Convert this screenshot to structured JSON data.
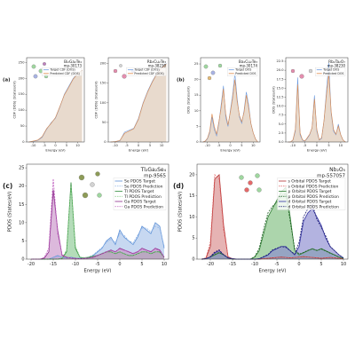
{
  "chart_data": [
    {
      "type": "area",
      "panel_label": "(a)",
      "title": "Bi₂Ga₂Te₄",
      "subtitle": "mp-30173",
      "xlabel": "Energy (eV)",
      "ylabel": "CDF (DOS) (States/eV)",
      "xlim": [
        -13,
        13
      ],
      "xticks": [
        -10,
        -5,
        0,
        5,
        10
      ],
      "ylim": [
        0,
        265
      ],
      "yticks": [
        0,
        50,
        100,
        150,
        200,
        250
      ],
      "legend": "upper right",
      "x": [
        -12,
        -10,
        -8,
        -6,
        -4,
        -2,
        0,
        2,
        4,
        6,
        8,
        10,
        12
      ],
      "series": [
        {
          "name": "Target CDF (DOS)",
          "color": "#6a9ae0",
          "values": [
            0,
            2,
            5,
            15,
            40,
            60,
            75,
            110,
            150,
            175,
            200,
            215,
            225
          ]
        },
        {
          "name": "Predicted CDF (DOS)",
          "color": "#e08a4a",
          "fill": "#dcc6b2",
          "values": [
            0,
            3,
            6,
            17,
            42,
            58,
            77,
            112,
            148,
            172,
            198,
            214,
            226
          ]
        }
      ]
    },
    {
      "type": "area",
      "title": "Rb₂Cu₂Te₃",
      "subtitle": "mp-38230",
      "xlabel": "Energy (eV)",
      "ylabel": "CDF (DOS) (States/eV)",
      "xlim": [
        -13,
        13
      ],
      "xticks": [
        -10,
        -5,
        0,
        5,
        10
      ],
      "ylim": [
        0,
        215
      ],
      "yticks": [
        0,
        50,
        100,
        150,
        200
      ],
      "legend": "upper right",
      "x": [
        -12,
        -10,
        -8,
        -6,
        -4,
        -2,
        0,
        2,
        4,
        6,
        8,
        10,
        12
      ],
      "series": [
        {
          "name": "Target CDF (DOS)",
          "color": "#6a9ae0",
          "values": [
            0,
            1,
            3,
            25,
            30,
            35,
            60,
            100,
            130,
            155,
            175,
            190,
            200
          ]
        },
        {
          "name": "Predicted CDF (DOS)",
          "color": "#e08a4a",
          "fill": "#dcc6b2",
          "values": [
            0,
            1,
            4,
            22,
            28,
            34,
            58,
            98,
            128,
            153,
            174,
            189,
            199
          ]
        }
      ]
    },
    {
      "type": "area",
      "panel_label": "(b)",
      "title": "Ba₂Cu₂Te₃",
      "subtitle": "mp-30174",
      "xlabel": "Energy (eV)",
      "ylabel": "DOS (States/eV)",
      "xlim": [
        -13,
        13
      ],
      "xticks": [
        -10,
        -5,
        0,
        5,
        10
      ],
      "ylim": [
        0,
        27
      ],
      "yticks": [
        0,
        5,
        10,
        15,
        20,
        25
      ],
      "legend": "upper right",
      "x": [
        -12,
        -11,
        -10,
        -9,
        -8,
        -7,
        -6,
        -5,
        -4,
        -3,
        -2,
        -1,
        0,
        1,
        2,
        3,
        4,
        5,
        6,
        7,
        8,
        9,
        10,
        11,
        12
      ],
      "series": [
        {
          "name": "Target DOS",
          "color": "#6a9ae0",
          "values": [
            0,
            0.2,
            1,
            3,
            8,
            4,
            2,
            6,
            12,
            18,
            8,
            5,
            10,
            15,
            22,
            14,
            8,
            6,
            10,
            16,
            12,
            6,
            3,
            1,
            0
          ]
        },
        {
          "name": "Predicted DOS",
          "color": "#e08a4a",
          "fill": "#dcc6b2",
          "values": [
            0,
            0.3,
            1.2,
            3.5,
            9,
            5,
            2.5,
            6.5,
            11,
            17,
            9,
            5.5,
            9.5,
            14,
            20,
            13,
            8.5,
            6.5,
            9.5,
            15,
            11,
            6,
            3,
            1,
            0
          ]
        }
      ]
    },
    {
      "type": "area",
      "title": "Rb₂Ta₂O₇",
      "subtitle": "mp-38230",
      "xlabel": "Energy (eV)",
      "ylabel": "DOS (States/eV)",
      "xlim": [
        -13,
        13
      ],
      "xticks": [
        -10,
        -5,
        0,
        5,
        10
      ],
      "ylim": [
        0,
        23.5
      ],
      "yticks": [
        {
          "value": 0,
          "label": "0.0"
        },
        2.5,
        {
          "value": 5,
          "label": "5.0"
        },
        7.5,
        {
          "value": 10,
          "label": "10.0"
        },
        12.5,
        {
          "value": 15,
          "label": "15.0"
        },
        17.5,
        {
          "value": 20,
          "label": "20.0"
        },
        22.5
      ],
      "legend": "upper right",
      "x": [
        -12,
        -11,
        -10,
        -9,
        -8,
        -7,
        -6,
        -5,
        -4,
        -3,
        -2,
        -1,
        0,
        1,
        2,
        3,
        4,
        5,
        6,
        7,
        8,
        9,
        10,
        11,
        12
      ],
      "series": [
        {
          "name": "Target DOS",
          "color": "#6a9ae0",
          "values": [
            0,
            0,
            0.5,
            3,
            18,
            2,
            0.5,
            0.2,
            1,
            2,
            4,
            13,
            3,
            0.5,
            1,
            6,
            14,
            22,
            8,
            3,
            2,
            5,
            2,
            0.5,
            0
          ]
        },
        {
          "name": "Predicted DOS",
          "color": "#e08a4a",
          "fill": "#dcc6b2",
          "values": [
            0,
            0,
            0.6,
            3.5,
            16,
            2.5,
            0.6,
            0.3,
            1.2,
            2.2,
            4,
            12,
            3.5,
            0.6,
            1.2,
            6,
            13,
            19,
            8.5,
            3.5,
            2.2,
            4.5,
            2,
            0.5,
            0
          ]
        }
      ]
    },
    {
      "type": "area",
      "panel_label": "(c)",
      "title": "Tl₂Ga₂Se₄",
      "subtitle": "mp-9565",
      "xlabel": "Energy (eV)",
      "ylabel": "PDOS (States/eV)",
      "xlim": [
        -21,
        11
      ],
      "xticks": [
        -20,
        -15,
        -10,
        -5,
        0,
        5,
        10
      ],
      "ylim": [
        0,
        26
      ],
      "yticks": [
        0,
        5,
        10,
        15,
        20,
        25
      ],
      "legend": "upper right",
      "x": [
        -20,
        -19,
        -18,
        -17,
        -16,
        -15,
        -14,
        -13,
        -12,
        -11,
        -10,
        -9,
        -8,
        -7,
        -6,
        -5,
        -4,
        -3,
        -2,
        -1,
        0,
        1,
        2,
        3,
        4,
        5,
        6,
        7,
        8,
        9,
        10
      ],
      "series": [
        {
          "name": "Se PDOS Target",
          "color": "#5b8fd6",
          "fill": "#a9c3ea",
          "values": [
            0,
            0,
            0,
            0,
            0,
            0.5,
            1,
            0.5,
            0.3,
            0.5,
            0.3,
            0.2,
            0.3,
            0.5,
            1,
            2,
            3,
            5,
            6,
            4,
            8,
            6,
            5,
            4,
            6,
            9,
            8,
            7,
            10,
            9,
            3
          ]
        },
        {
          "name": "Se PDOS Prediction",
          "color": "#8fb4e6",
          "dashed": true,
          "values": [
            0,
            0,
            0,
            0,
            0,
            0.4,
            0.8,
            0.5,
            0.3,
            0.4,
            0.3,
            0.2,
            0.3,
            0.6,
            1.2,
            2.2,
            3.2,
            4.6,
            5.5,
            4.5,
            7,
            6.5,
            5,
            4.5,
            6.5,
            8.5,
            8.5,
            7.5,
            9,
            8.5,
            3.5
          ]
        },
        {
          "name": "Tl PDOS Target",
          "color": "#2e8b3a",
          "fill": "#8cc993",
          "values": [
            0,
            0,
            0,
            0,
            0,
            0,
            0,
            0.2,
            2,
            21,
            3,
            0.5,
            0.3,
            0.5,
            0.8,
            1,
            1.5,
            2,
            2,
            1.5,
            2,
            1.5,
            1,
            1,
            1.5,
            2,
            2,
            1.5,
            2,
            2,
            0.5
          ]
        },
        {
          "name": "Tl PDOS Prediction",
          "color": "#7fc97f",
          "dashed": true,
          "values": [
            0,
            0,
            0,
            0,
            0,
            0,
            0,
            0.3,
            2.5,
            20,
            3.5,
            0.6,
            0.4,
            0.6,
            0.9,
            1.1,
            1.6,
            2.1,
            1.9,
            1.6,
            2.1,
            1.4,
            1.1,
            1.1,
            1.4,
            2.1,
            1.9,
            1.6,
            2.1,
            1.8,
            0.6
          ]
        },
        {
          "name": "Ga PDOS Target",
          "color": "#8b2a8b",
          "fill": "#c994c9",
          "values": [
            0,
            0,
            0,
            0.3,
            2,
            19,
            8,
            1,
            0.5,
            0.3,
            0.2,
            0.1,
            0.2,
            0.3,
            0.5,
            1,
            1.5,
            2,
            2.5,
            2,
            3,
            2.5,
            2,
            1.5,
            2,
            3,
            2.5,
            2,
            3,
            2.5,
            0.5
          ]
        },
        {
          "name": "Ga PDOS Prediction",
          "color": "#c060c0",
          "dashed": true,
          "values": [
            0,
            0,
            0,
            0.5,
            3,
            22,
            7,
            1.2,
            0.6,
            0.3,
            0.2,
            0.1,
            0.2,
            0.3,
            0.6,
            1.1,
            1.4,
            2.1,
            2.3,
            2.1,
            2.8,
            2.4,
            2.1,
            1.6,
            2.1,
            2.8,
            2.4,
            2.2,
            2.8,
            2.3,
            0.6
          ]
        }
      ]
    },
    {
      "type": "area",
      "panel_label": "(d)",
      "title": "Nb₂O₅",
      "subtitle": "mp-557057",
      "xlabel": "Energy (eV)",
      "ylabel": "PDOS (States/eV)",
      "xlim": [
        -23,
        11
      ],
      "xticks": [
        -20,
        -15,
        -10,
        -5,
        0,
        5,
        10
      ],
      "ylim": [
        0,
        22.5
      ],
      "yticks": [
        0,
        5,
        10,
        15,
        20
      ],
      "legend": "upper right",
      "x": [
        -22,
        -21,
        -20,
        -19,
        -18,
        -17,
        -16,
        -15,
        -14,
        -13,
        -12,
        -11,
        -10,
        -9,
        -8,
        -7,
        -6,
        -5,
        -4,
        -3,
        -2,
        -1,
        0,
        1,
        2,
        3,
        4,
        5,
        6,
        7,
        8,
        9,
        10
      ],
      "series": [
        {
          "name": "s Orbital PDOS Target",
          "color": "#b03030",
          "fill": "#d98a8a",
          "values": [
            0,
            0.2,
            3,
            19,
            20,
            8,
            0.5,
            0.1,
            0,
            0,
            0,
            0,
            0,
            0,
            0.1,
            0.2,
            0.3,
            0.4,
            0.5,
            0.4,
            0.3,
            0.4,
            0.5,
            0.6,
            0.5,
            0.4,
            0.3,
            0.2,
            0.3,
            0.4,
            0.3,
            0.2,
            0.1
          ]
        },
        {
          "name": "s Orbital PDOS Prediction",
          "color": "#e06060",
          "dashed": true,
          "values": [
            0,
            0.3,
            4,
            20,
            19,
            7,
            0.6,
            0.1,
            0,
            0,
            0,
            0,
            0,
            0,
            0.1,
            0.2,
            0.3,
            0.4,
            0.4,
            0.4,
            0.3,
            0.4,
            0.5,
            0.5,
            0.5,
            0.4,
            0.3,
            0.2,
            0.3,
            0.4,
            0.3,
            0.2,
            0.1
          ]
        },
        {
          "name": "p Orbital PDOS Target",
          "color": "#2e7d32",
          "fill": "#7fbf7f",
          "values": [
            0,
            0.1,
            0.5,
            1,
            1.5,
            1,
            0.3,
            0,
            0,
            0,
            0,
            0,
            0.5,
            2,
            6,
            10,
            12,
            14,
            16,
            17,
            10,
            2,
            1,
            1.5,
            2,
            2.5,
            2,
            2.5,
            2,
            1.5,
            1,
            0.5,
            0.2
          ]
        },
        {
          "name": "p Orbital PDOS Prediction",
          "color": "#1b5e20",
          "dashed": true,
          "values": [
            0,
            0.1,
            0.6,
            1.2,
            1.6,
            1.1,
            0.3,
            0,
            0,
            0,
            0,
            0,
            0.6,
            2.5,
            7,
            11,
            12.5,
            13.5,
            15,
            15.5,
            9,
            2.5,
            1.2,
            1.6,
            2.1,
            2.4,
            2.1,
            2.4,
            1.9,
            1.4,
            1,
            0.5,
            0.2
          ]
        },
        {
          "name": "d Orbital PDOS Target",
          "color": "#3030a0",
          "fill": "#8a8ad0",
          "values": [
            0,
            0.1,
            0.5,
            1.5,
            2,
            1,
            0.3,
            0.1,
            0,
            0,
            0,
            0,
            0,
            0.1,
            0.5,
            1,
            2,
            2.5,
            3,
            3,
            2,
            1,
            3,
            9,
            11,
            12,
            10,
            8,
            5,
            3,
            2,
            1,
            0.3
          ]
        },
        {
          "name": "d Orbital PDOS Prediction",
          "color": "#1a1a70",
          "dashed": true,
          "values": [
            0,
            0.1,
            0.6,
            1.7,
            2.2,
            1,
            0.3,
            0.1,
            0,
            0,
            0,
            0,
            0,
            0.1,
            0.6,
            1.1,
            2.2,
            2.6,
            3,
            2.8,
            2,
            1.2,
            4,
            10,
            12,
            13,
            9.5,
            7.5,
            5.5,
            3,
            2,
            1,
            0.3
          ]
        }
      ]
    }
  ]
}
